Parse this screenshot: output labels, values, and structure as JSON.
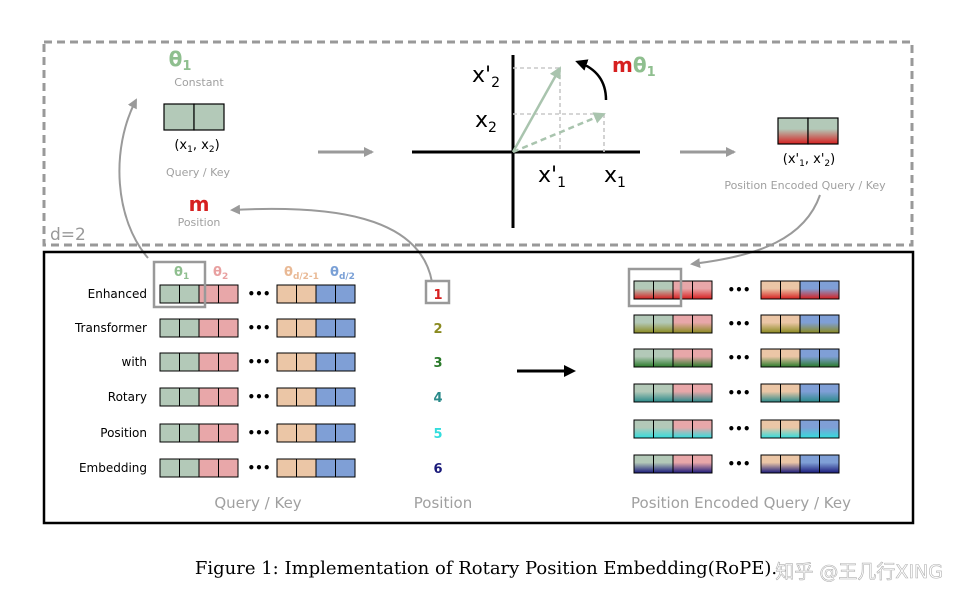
{
  "colors": {
    "dash_border": "#999999",
    "gray_text": "#a0a0a0",
    "green_cell": "#b3c9b8",
    "pink_cell": "#e8a7a9",
    "peach_cell": "#ebc6a6",
    "blue_cell": "#7f9fd6",
    "theta1_green": "#8fbf8f",
    "theta2_pink": "#e8a0a0",
    "theta3_peach": "#e9b995",
    "theta4_blue": "#7aa0d6",
    "m_red": "#d62020",
    "arrow_gray": "#9a9a9a"
  },
  "top": {
    "d_label": "d=2",
    "theta1": "θ",
    "theta1_sub": "1",
    "constant": "Constant",
    "x_pair": "(x",
    "x_pair_sub1": "1",
    "x_pair_mid": ", x",
    "x_pair_sub2": "2",
    "x_pair_end": ")",
    "query_key": "Query / Key",
    "m": "m",
    "position": "Position",
    "axis": {
      "x1": "x",
      "x1_sub": "1",
      "x2": "x",
      "x2_sub": "2",
      "xp1": "x'",
      "xp1_sub": "1",
      "xp2": "x'",
      "xp2_sub": "2",
      "rot_m": "m",
      "rot_theta": "θ",
      "rot_sub": "1"
    },
    "xp_pair": "(x'",
    "xp_pair_sub1": "1",
    "xp_pair_mid": ", x'",
    "xp_pair_sub2": "2",
    "xp_pair_end": ")",
    "pe_query_key": "Position Encoded Query / Key"
  },
  "bottom": {
    "words": [
      "Enhanced",
      "Transformer",
      "with",
      "Rotary",
      "Position",
      "Embedding"
    ],
    "thetas": [
      {
        "t": "θ",
        "sub": "1"
      },
      {
        "t": "θ",
        "sub": "2"
      },
      {
        "t": "θ",
        "sub": "d/2-1"
      },
      {
        "t": "θ",
        "sub": "d/2"
      }
    ],
    "dots": "•••",
    "positions": [
      "1",
      "2",
      "3",
      "4",
      "5",
      "6"
    ],
    "position_colors": [
      "#d62020",
      "#8a8a20",
      "#2a7a2a",
      "#2a8a8a",
      "#33dddd",
      "#1a1a7a"
    ],
    "query_key_label": "Query / Key",
    "position_label": "Position",
    "pe_label": "Position Encoded Query / Key"
  },
  "caption": "Figure 1: Implementation of Rotary Position Embedding(RoPE).",
  "watermark": "知乎 @王几行XING"
}
